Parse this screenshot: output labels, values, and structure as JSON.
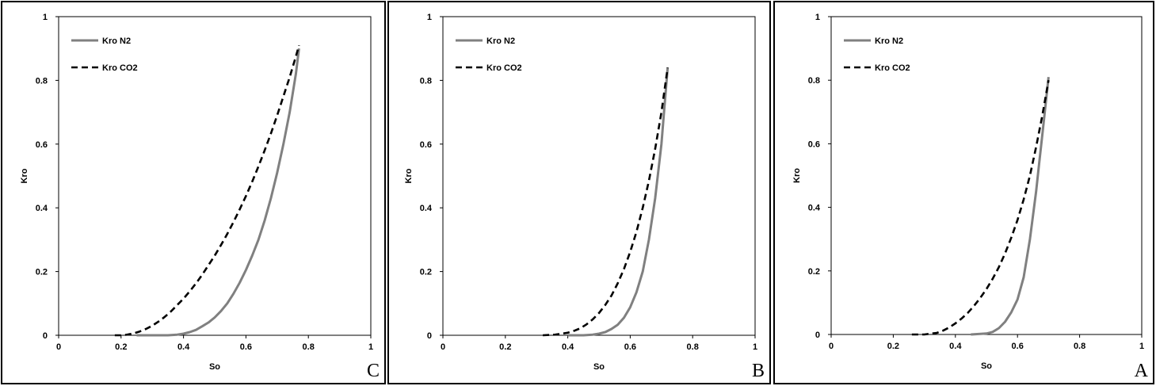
{
  "chart_data": [
    {
      "type": "line",
      "panel_label": "C",
      "xlabel": "So",
      "ylabel": "Kro",
      "xlim": [
        0,
        1
      ],
      "ylim": [
        0,
        1
      ],
      "xticks": [
        "0",
        "0.2",
        "0.4",
        "0.6",
        "0.8",
        "1"
      ],
      "yticks": [
        "0",
        "0.2",
        "0.4",
        "0.6",
        "0.8",
        "1"
      ],
      "grid": false,
      "legend": "top-left",
      "series": [
        {
          "name": "Kro N2",
          "style": "solid",
          "color": "#808080",
          "x": [
            0.25,
            0.3,
            0.35,
            0.38,
            0.4,
            0.42,
            0.44,
            0.46,
            0.48,
            0.5,
            0.52,
            0.54,
            0.56,
            0.58,
            0.6,
            0.62,
            0.64,
            0.66,
            0.68,
            0.7,
            0.72,
            0.74,
            0.76,
            0.77
          ],
          "y": [
            0.0,
            0.0,
            0.0,
            0.002,
            0.005,
            0.01,
            0.017,
            0.028,
            0.04,
            0.056,
            0.076,
            0.1,
            0.13,
            0.165,
            0.205,
            0.25,
            0.3,
            0.36,
            0.43,
            0.51,
            0.6,
            0.7,
            0.82,
            0.9
          ]
        },
        {
          "name": "Kro CO2",
          "style": "dashed",
          "color": "#000000",
          "x": [
            0.18,
            0.2,
            0.22,
            0.24,
            0.26,
            0.28,
            0.3,
            0.32,
            0.34,
            0.36,
            0.38,
            0.4,
            0.42,
            0.44,
            0.46,
            0.48,
            0.5,
            0.52,
            0.54,
            0.56,
            0.58,
            0.6,
            0.62,
            0.64,
            0.66,
            0.68,
            0.7,
            0.72,
            0.74,
            0.76,
            0.77
          ],
          "y": [
            0.0,
            0.0,
            0.002,
            0.006,
            0.012,
            0.02,
            0.03,
            0.043,
            0.058,
            0.075,
            0.095,
            0.115,
            0.138,
            0.163,
            0.19,
            0.22,
            0.25,
            0.283,
            0.318,
            0.355,
            0.395,
            0.437,
            0.482,
            0.53,
            0.58,
            0.633,
            0.69,
            0.75,
            0.81,
            0.875,
            0.91
          ]
        }
      ]
    },
    {
      "type": "line",
      "panel_label": "B",
      "xlabel": "So",
      "ylabel": "Kro",
      "xlim": [
        0,
        1
      ],
      "ylim": [
        0,
        1
      ],
      "xticks": [
        "0",
        "0.2",
        "0.4",
        "0.6",
        "0.8",
        "1"
      ],
      "yticks": [
        "0",
        "0.2",
        "0.4",
        "0.6",
        "0.8",
        "1"
      ],
      "grid": false,
      "legend": "top-left",
      "series": [
        {
          "name": "Kro N2",
          "style": "solid",
          "color": "#808080",
          "x": [
            0.4,
            0.45,
            0.48,
            0.5,
            0.52,
            0.54,
            0.56,
            0.58,
            0.6,
            0.62,
            0.64,
            0.66,
            0.68,
            0.7,
            0.71,
            0.72
          ],
          "y": [
            0.0,
            0.0,
            0.002,
            0.005,
            0.01,
            0.02,
            0.033,
            0.055,
            0.088,
            0.135,
            0.2,
            0.3,
            0.43,
            0.6,
            0.72,
            0.84
          ]
        },
        {
          "name": "Kro CO2",
          "style": "dashed",
          "color": "#000000",
          "x": [
            0.32,
            0.36,
            0.4,
            0.42,
            0.44,
            0.46,
            0.48,
            0.5,
            0.52,
            0.54,
            0.56,
            0.58,
            0.6,
            0.62,
            0.64,
            0.66,
            0.68,
            0.7,
            0.71,
            0.72
          ],
          "y": [
            0.0,
            0.002,
            0.008,
            0.014,
            0.022,
            0.034,
            0.05,
            0.07,
            0.095,
            0.125,
            0.163,
            0.208,
            0.262,
            0.325,
            0.4,
            0.485,
            0.585,
            0.7,
            0.77,
            0.84
          ]
        }
      ]
    },
    {
      "type": "line",
      "panel_label": "A",
      "xlabel": "So",
      "ylabel": "Kro",
      "xlim": [
        0,
        1
      ],
      "ylim": [
        0,
        1
      ],
      "xticks": [
        "0",
        "0.2",
        "0.4",
        "0.6",
        "0.8",
        "1"
      ],
      "yticks": [
        "0",
        "0.2",
        "0.4",
        "0.6",
        "0.8",
        "1"
      ],
      "grid": false,
      "legend": "top-left",
      "series": [
        {
          "name": "Kro N2",
          "style": "solid",
          "color": "#808080",
          "x": [
            0.45,
            0.5,
            0.52,
            0.54,
            0.56,
            0.58,
            0.6,
            0.62,
            0.64,
            0.66,
            0.67,
            0.68,
            0.69,
            0.7
          ],
          "y": [
            0.0,
            0.003,
            0.008,
            0.02,
            0.04,
            0.07,
            0.11,
            0.18,
            0.3,
            0.45,
            0.54,
            0.63,
            0.72,
            0.81
          ]
        },
        {
          "name": "Kro CO2",
          "style": "dashed",
          "color": "#000000",
          "x": [
            0.26,
            0.3,
            0.34,
            0.36,
            0.38,
            0.4,
            0.42,
            0.44,
            0.46,
            0.48,
            0.5,
            0.52,
            0.54,
            0.56,
            0.58,
            0.6,
            0.62,
            0.64,
            0.66,
            0.68,
            0.7
          ],
          "y": [
            0.0,
            0.0,
            0.005,
            0.012,
            0.022,
            0.035,
            0.05,
            0.068,
            0.09,
            0.115,
            0.143,
            0.175,
            0.212,
            0.255,
            0.305,
            0.36,
            0.425,
            0.5,
            0.59,
            0.69,
            0.8
          ]
        }
      ]
    }
  ]
}
